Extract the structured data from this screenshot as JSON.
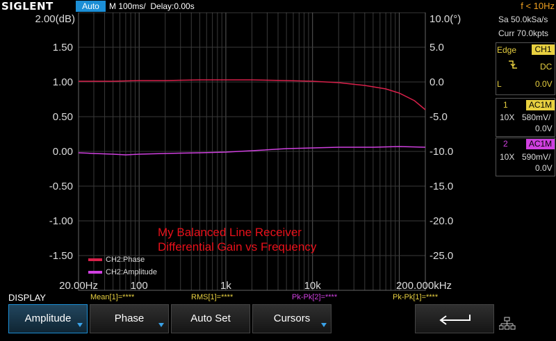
{
  "header": {
    "logo": "SIGLENT",
    "mode": "Auto",
    "timebase": "M 100ms/  Delay:0.00s",
    "trigger_freq": "f < 10Hz"
  },
  "side_panel": {
    "sample_rate": "Sa 50.0kSa/s",
    "memory": "Curr 70.0kpts",
    "trigger": {
      "type": "Edge",
      "source": "CH1",
      "coupling": "DC",
      "level_label": "L",
      "level": "0.0V"
    },
    "ch1": {
      "number": "1",
      "coupling": "AC1M",
      "probe": "10X",
      "scale": "580mV/",
      "offset": "0.0V"
    },
    "ch2": {
      "number": "2",
      "coupling": "AC1M",
      "probe": "10X",
      "scale": "590mV/",
      "offset": "0.0V"
    }
  },
  "colors": {
    "phase": "#d8204a",
    "amplitude": "#d040e0",
    "grid": "#3a3a3a",
    "accent": "#1c8fd6"
  },
  "annotation": {
    "line1": "My Balanced Line Receiver",
    "line2": "Differential Gain vs Frequency",
    "color": "#e8101a"
  },
  "chart_data": {
    "type": "line",
    "x_scale": "log",
    "xlim": [
      20,
      200000
    ],
    "x_tick_labels": [
      {
        "x": 20,
        "label": "20.00Hz"
      },
      {
        "x": 100,
        "label": "100"
      },
      {
        "x": 1000,
        "label": "1k"
      },
      {
        "x": 10000,
        "label": "10k"
      },
      {
        "x": 200000,
        "label": "200.000kHz"
      }
    ],
    "left_axis": {
      "title": "2.00(dB)",
      "ylim": [
        -2,
        2
      ],
      "ticks": [
        1.5,
        1.0,
        0.5,
        0.0,
        -0.5,
        -1.0,
        -1.5
      ],
      "tick_labels": [
        "1.50",
        "1.00",
        "0.50",
        "0.00",
        "-0.50",
        "-1.00",
        "-1.50"
      ]
    },
    "right_axis": {
      "title": "10.0(°)",
      "ylim": [
        -30,
        10
      ],
      "ticks": [
        5,
        0,
        -5,
        -10,
        -15,
        -20,
        -25
      ],
      "tick_labels": [
        "5.0",
        "0.0",
        "-5.0",
        "-10.0",
        "-15.0",
        "-20.0",
        "-25.0"
      ]
    },
    "grid": true,
    "legend": [
      {
        "label": "CH2:Phase",
        "color": "#d8204a"
      },
      {
        "label": "CH2:Amplitude",
        "color": "#d040e0"
      }
    ],
    "series": [
      {
        "name": "CH2:Phase",
        "axis": "left",
        "x": [
          20,
          30,
          50,
          100,
          200,
          500,
          1000,
          2000,
          5000,
          10000,
          20000,
          40000,
          70000,
          100000,
          150000,
          200000
        ],
        "values": [
          1.01,
          1.01,
          1.01,
          1.02,
          1.02,
          1.03,
          1.03,
          1.03,
          1.02,
          1.01,
          0.99,
          0.95,
          0.9,
          0.84,
          0.73,
          0.6
        ]
      },
      {
        "name": "CH2:Amplitude",
        "axis": "left",
        "x": [
          20,
          30,
          50,
          70,
          100,
          200,
          500,
          1000,
          2000,
          5000,
          10000,
          20000,
          50000,
          100000,
          200000
        ],
        "values": [
          -0.02,
          -0.03,
          -0.04,
          -0.05,
          -0.04,
          -0.03,
          -0.02,
          -0.01,
          0.01,
          0.04,
          0.05,
          0.06,
          0.06,
          0.07,
          0.06
        ]
      }
    ]
  },
  "measurements": [
    {
      "label": "Mean[1]=****",
      "color": "#e8d040"
    },
    {
      "label": "RMS[1]=****",
      "color": "#e8d040"
    },
    {
      "label": "Pk-Pk[2]=****",
      "color": "#d040e0"
    },
    {
      "label": "Pk-Pk[1]=****",
      "color": "#e8d040"
    }
  ],
  "menu": {
    "title": "DISPLAY",
    "buttons": [
      "Amplitude",
      "Phase",
      "Auto Set",
      "Cursors"
    ]
  }
}
